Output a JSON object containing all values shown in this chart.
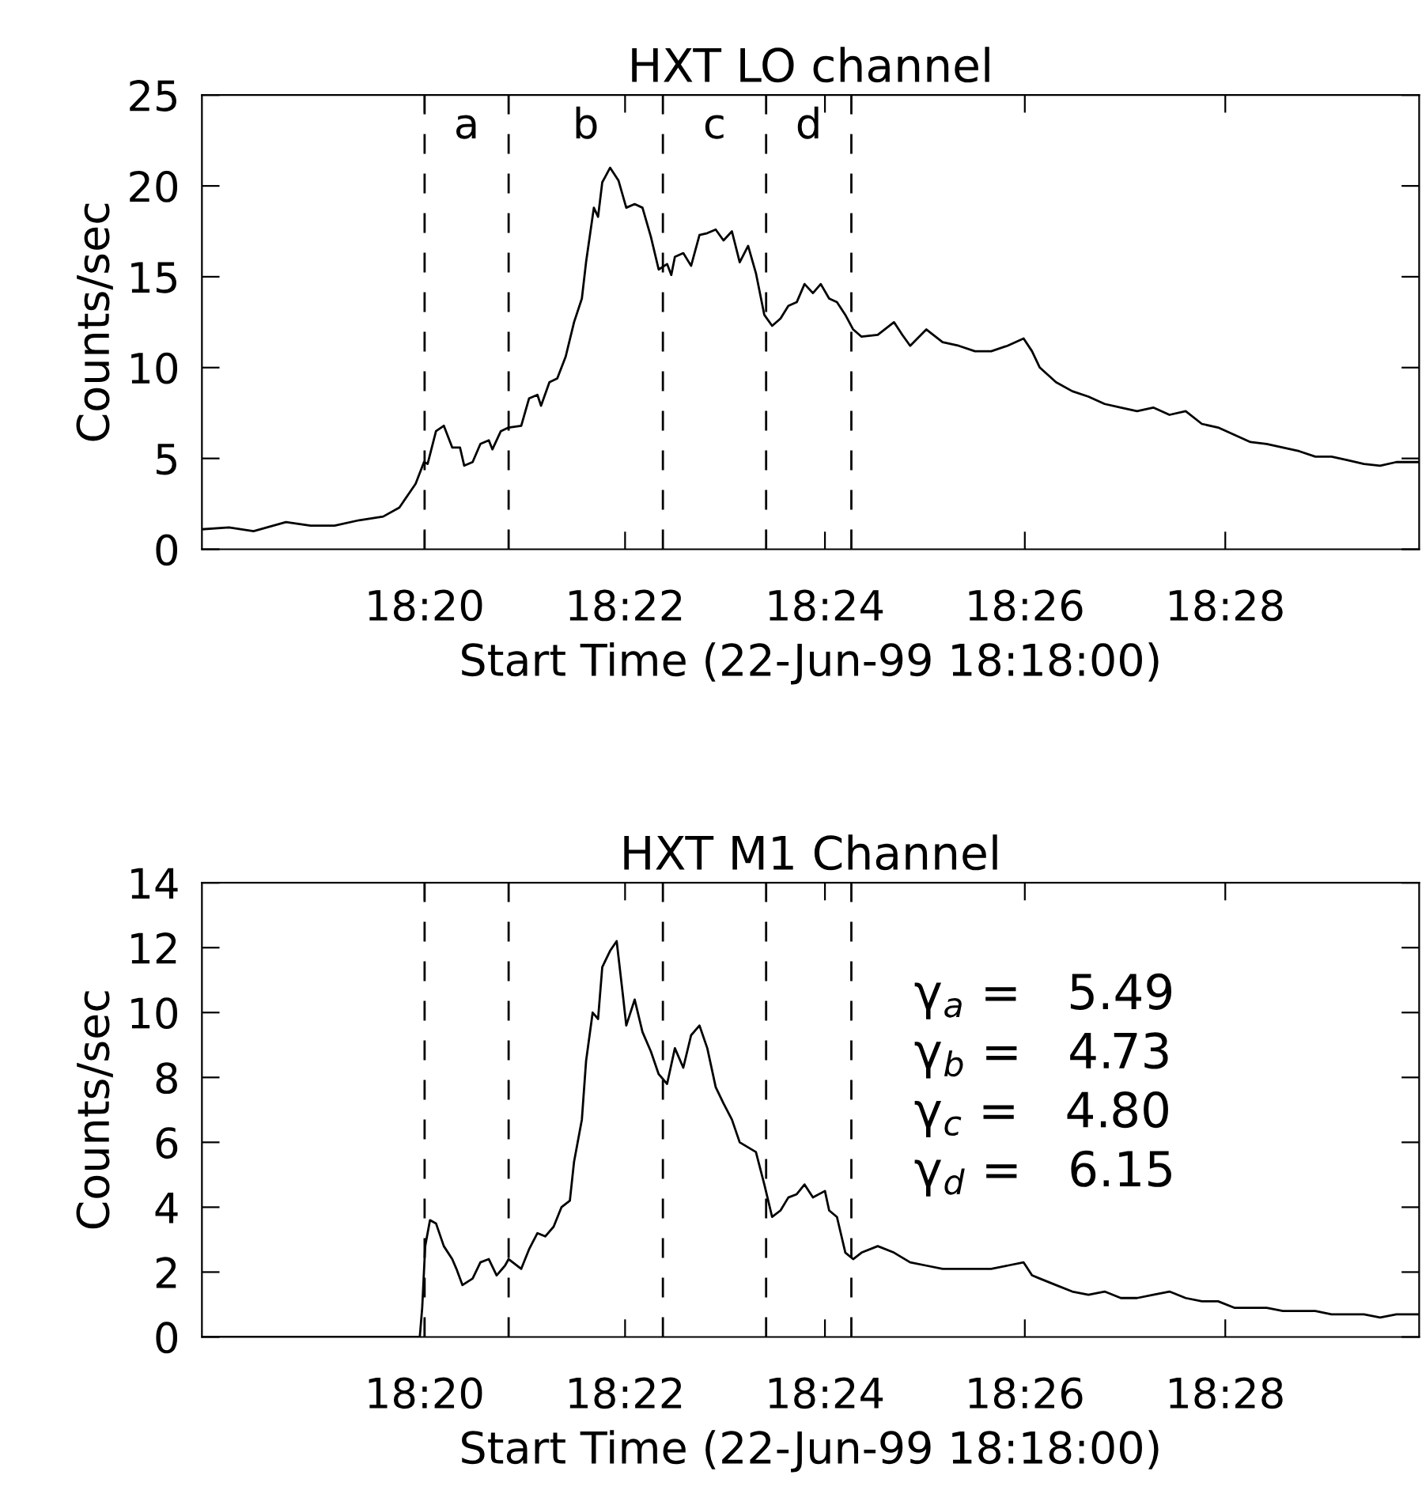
{
  "chart_data": [
    {
      "type": "line",
      "title": "HXT LO channel",
      "xlabel": "Start Time (22-Jun-99 18:18:00)",
      "ylabel": "Counts/sec",
      "x": [
        18.2962,
        18.3007,
        18.3048,
        18.3102,
        18.3143,
        18.3183,
        18.3224,
        18.3264,
        18.3291,
        18.3318,
        18.3332,
        18.3338,
        18.3352,
        18.3365,
        18.3379,
        18.3392,
        18.3399,
        18.3413,
        18.3426,
        18.344,
        18.3446,
        18.346,
        18.3473,
        18.3494,
        18.3507,
        18.3521,
        18.3527,
        18.3541,
        18.3554,
        18.3568,
        18.3582,
        18.3595,
        18.3602,
        18.3615,
        18.3622,
        18.3629,
        18.3642,
        18.3656,
        18.3669,
        18.3683,
        18.3696,
        18.371,
        18.3723,
        18.3737,
        18.3744,
        18.375,
        18.3764,
        18.3777,
        18.3791,
        18.3804,
        18.3818,
        18.3831,
        18.3845,
        18.3858,
        18.3872,
        18.3885,
        18.3899,
        18.3912,
        18.3926,
        18.3939,
        18.3953,
        18.3966,
        18.398,
        18.3993,
        18.4007,
        18.402,
        18.4034,
        18.4047,
        18.4061,
        18.4088,
        18.4115,
        18.4129,
        18.4142,
        18.4169,
        18.4196,
        18.4223,
        18.425,
        18.4277,
        18.4304,
        18.4331,
        18.4345,
        18.4358,
        18.4385,
        18.4412,
        18.4439,
        18.4466,
        18.4493,
        18.452,
        18.4547,
        18.4574,
        18.4601,
        18.4628,
        18.4655,
        18.4682,
        18.4709,
        18.4736,
        18.4763,
        18.479,
        18.4817,
        18.4844,
        18.4871,
        18.4898,
        18.4925,
        18.4952,
        18.499
      ],
      "series": [
        {
          "color": "#000000",
          "values": [
            1.1,
            1.2,
            1.0,
            1.5,
            1.3,
            1.3,
            1.6,
            1.8,
            2.3,
            3.6,
            4.8,
            4.7,
            6.5,
            6.8,
            5.6,
            5.6,
            4.6,
            4.8,
            5.8,
            6.0,
            5.5,
            6.5,
            6.7,
            6.8,
            8.3,
            8.5,
            7.9,
            9.2,
            9.4,
            10.6,
            12.5,
            13.8,
            15.8,
            18.8,
            18.3,
            20.2,
            21.0,
            20.3,
            18.8,
            19.0,
            18.8,
            17.2,
            15.4,
            15.7,
            15.1,
            16.1,
            16.3,
            15.6,
            17.3,
            17.4,
            17.6,
            17.0,
            17.5,
            15.8,
            16.7,
            15.2,
            12.9,
            12.3,
            12.7,
            13.4,
            13.6,
            14.6,
            14.1,
            14.6,
            13.8,
            13.6,
            12.9,
            12.1,
            11.7,
            11.8,
            12.5,
            11.8,
            11.2,
            12.1,
            11.4,
            11.2,
            10.9,
            10.9,
            11.2,
            11.6,
            10.9,
            10.0,
            9.2,
            8.7,
            8.4,
            8.0,
            7.8,
            7.6,
            7.8,
            7.4,
            7.6,
            6.9,
            6.7,
            6.3,
            5.9,
            5.8,
            5.6,
            5.4,
            5.1,
            5.1,
            4.9,
            4.7,
            4.6,
            4.8,
            4.8
          ]
        }
      ],
      "xlim": [
        18.2962,
        18.499
      ],
      "xticks": [
        {
          "value": 18.3333,
          "label": "18:20"
        },
        {
          "value": 18.3667,
          "label": "18:22"
        },
        {
          "value": 18.4,
          "label": "18:24"
        },
        {
          "value": 18.4333,
          "label": "18:26"
        },
        {
          "value": 18.4667,
          "label": "18:28"
        }
      ],
      "ylim": [
        0,
        25
      ],
      "yticks": [
        0,
        5,
        10,
        15,
        20,
        25
      ],
      "ref_lines": [
        {
          "axis": "x",
          "value": 18.3333,
          "line_style": "dashed"
        },
        {
          "axis": "x",
          "value": 18.3473,
          "line_style": "dashed"
        },
        {
          "axis": "x",
          "value": 18.373,
          "line_style": "dashed"
        },
        {
          "axis": "x",
          "value": 18.3902,
          "line_style": "dashed"
        },
        {
          "axis": "x",
          "value": 18.4044,
          "line_style": "dashed"
        }
      ],
      "annotations": [
        "a",
        "b",
        "c",
        "d"
      ],
      "grid": false,
      "legend": false
    },
    {
      "type": "line",
      "title": "HXT M1 Channel",
      "xlabel": "Start Time (22-Jun-99 18:18:00)",
      "ylabel": "Counts/sec",
      "x": [
        18.2962,
        18.3325,
        18.3329,
        18.3334,
        18.3342,
        18.3352,
        18.3365,
        18.3379,
        18.3386,
        18.3396,
        18.3413,
        18.3426,
        18.344,
        18.3453,
        18.3467,
        18.3473,
        18.3494,
        18.3507,
        18.3521,
        18.3534,
        18.3548,
        18.3561,
        18.3575,
        18.3582,
        18.3595,
        18.3602,
        18.3613,
        18.3622,
        18.3629,
        18.3642,
        18.3653,
        18.3663,
        18.3669,
        18.3683,
        18.3696,
        18.371,
        18.3723,
        18.3737,
        18.375,
        18.3764,
        18.3777,
        18.3791,
        18.3804,
        18.3818,
        18.3831,
        18.3845,
        18.3858,
        18.3885,
        18.3899,
        18.3912,
        18.3926,
        18.3939,
        18.3953,
        18.3966,
        18.398,
        18.4,
        18.4007,
        18.402,
        18.4034,
        18.4047,
        18.4061,
        18.4088,
        18.4115,
        18.4142,
        18.4169,
        18.4196,
        18.4223,
        18.425,
        18.4277,
        18.4304,
        18.4331,
        18.4345,
        18.4358,
        18.4385,
        18.4412,
        18.4439,
        18.4466,
        18.4493,
        18.452,
        18.4547,
        18.4574,
        18.4601,
        18.4628,
        18.4655,
        18.4682,
        18.4709,
        18.4736,
        18.4763,
        18.479,
        18.4817,
        18.4844,
        18.4871,
        18.4898,
        18.4925,
        18.4952,
        18.499
      ],
      "series": [
        {
          "color": "#000000",
          "values": [
            0,
            0,
            0.9,
            2.8,
            3.6,
            3.5,
            2.8,
            2.4,
            2.1,
            1.6,
            1.8,
            2.3,
            2.4,
            1.9,
            2.2,
            2.4,
            2.1,
            2.7,
            3.2,
            3.1,
            3.4,
            4.0,
            4.2,
            5.4,
            6.7,
            8.5,
            10.0,
            9.8,
            11.4,
            11.9,
            12.2,
            10.6,
            9.6,
            10.4,
            9.4,
            8.8,
            8.1,
            7.8,
            8.9,
            8.3,
            9.3,
            9.6,
            8.9,
            7.7,
            7.2,
            6.7,
            6.0,
            5.7,
            4.7,
            3.7,
            3.9,
            4.3,
            4.4,
            4.7,
            4.3,
            4.5,
            3.9,
            3.7,
            2.6,
            2.4,
            2.6,
            2.8,
            2.6,
            2.3,
            2.2,
            2.1,
            2.1,
            2.1,
            2.1,
            2.2,
            2.3,
            1.9,
            1.8,
            1.6,
            1.4,
            1.3,
            1.4,
            1.2,
            1.2,
            1.3,
            1.4,
            1.2,
            1.1,
            1.1,
            0.9,
            0.9,
            0.9,
            0.8,
            0.8,
            0.8,
            0.7,
            0.7,
            0.7,
            0.6,
            0.7,
            0.7
          ]
        }
      ],
      "xlim": [
        18.2962,
        18.499
      ],
      "xticks": [
        {
          "value": 18.3333,
          "label": "18:20"
        },
        {
          "value": 18.3667,
          "label": "18:22"
        },
        {
          "value": 18.4,
          "label": "18:24"
        },
        {
          "value": 18.4333,
          "label": "18:26"
        },
        {
          "value": 18.4667,
          "label": "18:28"
        }
      ],
      "ylim": [
        0,
        14
      ],
      "yticks": [
        0,
        2,
        4,
        6,
        8,
        10,
        12,
        14
      ],
      "ref_lines": [
        {
          "axis": "x",
          "value": 18.3333,
          "line_style": "dashed"
        },
        {
          "axis": "x",
          "value": 18.3473,
          "line_style": "dashed"
        },
        {
          "axis": "x",
          "value": 18.373,
          "line_style": "dashed"
        },
        {
          "axis": "x",
          "value": 18.3902,
          "line_style": "dashed"
        },
        {
          "axis": "x",
          "value": 18.4044,
          "line_style": "dashed"
        }
      ],
      "annotations": [
        "γ$_{a}$ =   5.49",
        "γ$_{b}$ =   4.73",
        "γ$_{c}$ =   4.80",
        "γ$_{d}$ =   6.15"
      ],
      "grid": false,
      "legend": false
    }
  ]
}
